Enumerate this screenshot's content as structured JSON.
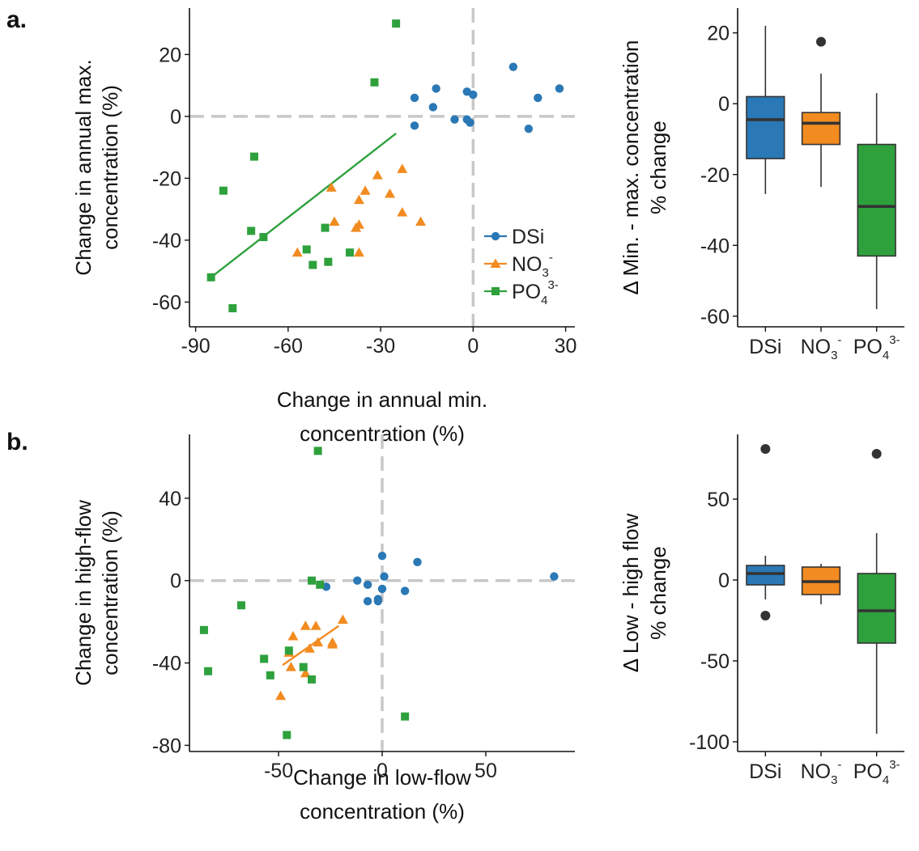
{
  "panels": {
    "a": "a.",
    "b": "b."
  },
  "colors": {
    "DSi": "#2a78b5",
    "NO3": "#f28b20",
    "PO4": "#2ea13d",
    "ref": "#c8c8c8",
    "axis": "#111111"
  },
  "legend": {
    "entries": [
      {
        "key": "DSi",
        "text": "DSi",
        "sub": "",
        "sup": ""
      },
      {
        "key": "NO3",
        "text": "NO",
        "sub": "3",
        "sup": "-"
      },
      {
        "key": "PO4",
        "text": "PO",
        "sub": "4",
        "sup": "3-"
      }
    ]
  },
  "box_categories": [
    {
      "key": "DSi",
      "text": "DSi",
      "sub": "",
      "sup": ""
    },
    {
      "key": "NO3",
      "text": "NO",
      "sub": "3",
      "sup": "-"
    },
    {
      "key": "PO4",
      "text": "PO",
      "sub": "4",
      "sup": "3-"
    }
  ],
  "chart_data": [
    {
      "type": "scatter",
      "panel": "a",
      "xlabel": [
        "Change in annual min.",
        "concentration (%)"
      ],
      "ylabel": [
        "Change in annual max.",
        "concentration (%)"
      ],
      "xlim": [
        -92,
        33
      ],
      "ylim": [
        -68,
        35
      ],
      "xticks": [
        -90,
        -60,
        -30,
        0,
        30
      ],
      "yticks": [
        20,
        0,
        -20,
        -40,
        -60
      ],
      "ref_lines": {
        "x": 0,
        "y": 0
      },
      "legend_position": "inside-right",
      "series": [
        {
          "key": "DSi",
          "marker": "circle",
          "points": [
            [
              -19,
              6
            ],
            [
              -12,
              9
            ],
            [
              -19,
              -3
            ],
            [
              -13,
              3
            ],
            [
              -6,
              -1
            ],
            [
              -2,
              8
            ],
            [
              -2,
              -1
            ],
            [
              0,
              7
            ],
            [
              -1,
              -2
            ],
            [
              13,
              16
            ],
            [
              21,
              6
            ],
            [
              28,
              9
            ],
            [
              18,
              -4
            ]
          ]
        },
        {
          "key": "NO3",
          "marker": "triangle",
          "points": [
            [
              -46,
              -23
            ],
            [
              -31,
              -19
            ],
            [
              -23,
              -17
            ],
            [
              -35,
              -24
            ],
            [
              -27,
              -25
            ],
            [
              -37,
              -27
            ],
            [
              -38,
              -36
            ],
            [
              -37,
              -35
            ],
            [
              -45,
              -34
            ],
            [
              -23,
              -31
            ],
            [
              -17,
              -34
            ],
            [
              -37,
              -44
            ],
            [
              -57,
              -44
            ]
          ]
        },
        {
          "key": "PO4",
          "marker": "square",
          "points": [
            [
              -25,
              30
            ],
            [
              -32,
              11
            ],
            [
              -71,
              -13
            ],
            [
              -81,
              -24
            ],
            [
              -72,
              -37
            ],
            [
              -68,
              -39
            ],
            [
              -48,
              -36
            ],
            [
              -54,
              -43
            ],
            [
              -52,
              -48
            ],
            [
              -47,
              -47
            ],
            [
              -40,
              -44
            ],
            [
              -85,
              -52
            ],
            [
              -78,
              -62
            ]
          ]
        }
      ],
      "fit_lines": [
        {
          "key": "PO4",
          "from": [
            -85,
            -52
          ],
          "to": [
            -25,
            -5.5
          ]
        }
      ]
    },
    {
      "type": "box",
      "panel": "a",
      "ylabel": [
        "Δ Min. - max. concentration",
        "% change"
      ],
      "ylim": [
        -63,
        27
      ],
      "yticks": [
        20,
        0,
        -20,
        -40,
        -60
      ],
      "boxes": [
        {
          "key": "DSi",
          "q1": -15.5,
          "median": -4.5,
          "q3": 2,
          "whisker_low": -25.5,
          "whisker_high": 22,
          "outliers": []
        },
        {
          "key": "NO3",
          "q1": -11.5,
          "median": -5.5,
          "q3": -2.5,
          "whisker_low": -23.5,
          "whisker_high": 8.5,
          "outliers": [
            17.5
          ]
        },
        {
          "key": "PO4",
          "q1": -43,
          "median": -29,
          "q3": -11.5,
          "whisker_low": -58,
          "whisker_high": 3,
          "outliers": []
        }
      ]
    },
    {
      "type": "scatter",
      "panel": "b",
      "xlabel": [
        "Change in low-flow",
        "concentration (%)"
      ],
      "ylabel": [
        "Change in high-flow",
        "concentration (%)"
      ],
      "xlim": [
        -93,
        93
      ],
      "ylim": [
        -83,
        71
      ],
      "xticks": [
        -50,
        0,
        50
      ],
      "yticks": [
        40,
        0,
        -40,
        -80
      ],
      "ref_lines": {
        "x": 0,
        "y": 0
      },
      "series": [
        {
          "key": "DSi",
          "marker": "circle",
          "points": [
            [
              0,
              12
            ],
            [
              17,
              9
            ],
            [
              83,
              2
            ],
            [
              -12,
              0
            ],
            [
              1,
              2
            ],
            [
              -27,
              -3
            ],
            [
              -7,
              -2
            ],
            [
              -7,
              -10
            ],
            [
              -2,
              -9
            ],
            [
              0,
              -4
            ],
            [
              11,
              -5
            ],
            [
              -2,
              -10
            ]
          ]
        },
        {
          "key": "NO3",
          "marker": "triangle",
          "points": [
            [
              -37,
              -22
            ],
            [
              -32,
              -22
            ],
            [
              -19,
              -19
            ],
            [
              -43,
              -27
            ],
            [
              -35,
              -33
            ],
            [
              -31,
              -30
            ],
            [
              -24,
              -30
            ],
            [
              -24,
              -31
            ],
            [
              -45,
              -35
            ],
            [
              -44,
              -42
            ],
            [
              -37,
              -45
            ],
            [
              -49,
              -56
            ]
          ]
        },
        {
          "key": "PO4",
          "marker": "square",
          "points": [
            [
              -31,
              63
            ],
            [
              -34,
              0
            ],
            [
              -30,
              -2
            ],
            [
              -68,
              -12
            ],
            [
              -86,
              -24
            ],
            [
              -57,
              -38
            ],
            [
              -84,
              -44
            ],
            [
              -54,
              -46
            ],
            [
              -45,
              -34
            ],
            [
              -38,
              -42
            ],
            [
              -34,
              -48
            ],
            [
              11,
              -66
            ],
            [
              -46,
              -75
            ]
          ]
        }
      ],
      "fit_lines": [
        {
          "key": "NO3",
          "from": [
            -48,
            -41
          ],
          "to": [
            -21,
            -22
          ]
        }
      ]
    },
    {
      "type": "box",
      "panel": "b",
      "ylabel": [
        "Δ Low - high flow",
        "% change"
      ],
      "ylim": [
        -106,
        90
      ],
      "yticks": [
        50,
        0,
        -50,
        -100
      ],
      "boxes": [
        {
          "key": "DSi",
          "q1": -3,
          "median": 4,
          "q3": 9,
          "whisker_low": -12,
          "whisker_high": 15,
          "outliers": [
            81,
            -22
          ]
        },
        {
          "key": "NO3",
          "q1": -9,
          "median": -1,
          "q3": 8,
          "whisker_low": -15,
          "whisker_high": 10,
          "outliers": []
        },
        {
          "key": "PO4",
          "q1": -39,
          "median": -19,
          "q3": 4,
          "whisker_low": -95,
          "whisker_high": 29,
          "outliers": [
            78
          ]
        }
      ]
    }
  ]
}
